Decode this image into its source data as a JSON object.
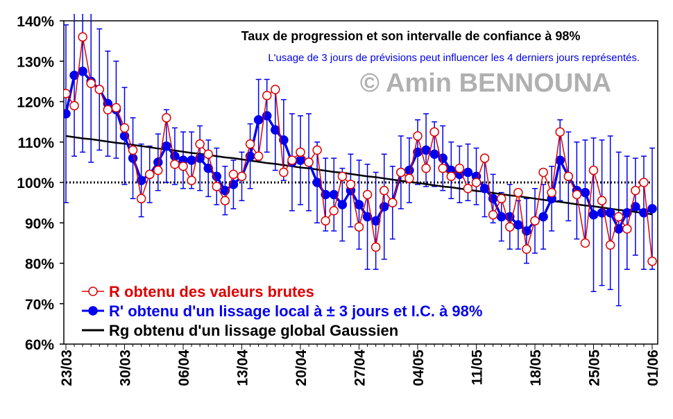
{
  "chart_data": {
    "type": "line",
    "title": "Taux de progression et son intervalle de confiance à 98%",
    "subtitle": "L'usage de 3 jours de prévisions peut influencer les 4 derniers jours représentés.",
    "watermark": "© Amin BENNOUNA",
    "categories": [
      "23/03",
      null,
      null,
      null,
      null,
      null,
      null,
      "30/03",
      null,
      null,
      null,
      null,
      null,
      null,
      "06/04",
      null,
      null,
      null,
      null,
      null,
      null,
      "13/04",
      null,
      null,
      null,
      null,
      null,
      null,
      "20/04",
      null,
      null,
      null,
      null,
      null,
      null,
      "27/04",
      null,
      null,
      null,
      null,
      null,
      null,
      "04/05",
      null,
      null,
      null,
      null,
      null,
      null,
      "11/05",
      null,
      null,
      null,
      null,
      null,
      null,
      "18/05",
      null,
      null,
      null,
      null,
      null,
      null,
      "25/05",
      null,
      null,
      null,
      null,
      null,
      null,
      "01/06"
    ],
    "ylim": [
      60,
      140
    ],
    "yticks": [
      {
        "value": 60,
        "label": "60%"
      },
      {
        "value": 70,
        "label": "70%"
      },
      {
        "value": 80,
        "label": "80%"
      },
      {
        "value": 90,
        "label": "90%"
      },
      {
        "value": 100,
        "label": "100%"
      },
      {
        "value": 110,
        "label": "110%"
      },
      {
        "value": 120,
        "label": "120%"
      },
      {
        "value": 130,
        "label": "130%"
      },
      {
        "value": 140,
        "label": "140%"
      }
    ],
    "reference_line": 100,
    "series": [
      {
        "name": "R obtenu des valeurs brutes",
        "color": "#dd0000",
        "marker": "open",
        "values": [
          122,
          119,
          136,
          124.5,
          123,
          118,
          118.5,
          113.5,
          108,
          96,
          102,
          103,
          116,
          104.5,
          104,
          100.5,
          109.5,
          107,
          99,
          95.5,
          102,
          101.5,
          109.5,
          106.5,
          121.5,
          123,
          102.5,
          105.5,
          107.5,
          105,
          108,
          90.5,
          93,
          101.5,
          99.5,
          89,
          97,
          84,
          98,
          95,
          102.5,
          101,
          111.5,
          103.5,
          112.5,
          103.5,
          101.5,
          103.5,
          98.5,
          100,
          106,
          92,
          96,
          89,
          97.5,
          83.5,
          90.5,
          102.5,
          97.5,
          112.5,
          101.5,
          97,
          85,
          103,
          95.5,
          84.5,
          91.5,
          88.5,
          98,
          100,
          80.5
        ]
      },
      {
        "name": "R' obtenu d'un lissage local à ± 3 jours et I.C. à 98%",
        "color": "#0000ee",
        "marker": "filled",
        "values": [
          117,
          126.5,
          127.5,
          125,
          123,
          119.5,
          118,
          111.5,
          106,
          100.5,
          102,
          105,
          109,
          106.5,
          105.5,
          105.5,
          106,
          103.5,
          101.5,
          98,
          99.5,
          101.5,
          106.5,
          115.5,
          116.5,
          113,
          110.5,
          105,
          105.5,
          105,
          100,
          97,
          97,
          94.5,
          98,
          94.5,
          91.5,
          90.5,
          94,
          95,
          102.5,
          103,
          107.5,
          108,
          107,
          106,
          103,
          102,
          102.5,
          101.5,
          98.5,
          96,
          91.5,
          91.5,
          89.5,
          88,
          90.5,
          91.5,
          96,
          105.5,
          101.5,
          98,
          97.5,
          92,
          92.5,
          92.5,
          88.5,
          92.5,
          94,
          92.5,
          93.5
        ],
        "errors": [
          22,
          20,
          20,
          20,
          15,
          13,
          12,
          12,
          10,
          9,
          7,
          7,
          9,
          7,
          7,
          7,
          8,
          7,
          7,
          6,
          6,
          6,
          8,
          10,
          9,
          10,
          10,
          12,
          11,
          12,
          10,
          9,
          9,
          9,
          9,
          11,
          13,
          12,
          13,
          9,
          9,
          8,
          8,
          9,
          8,
          8,
          7,
          7,
          7,
          7,
          7,
          6,
          6,
          8,
          6,
          8,
          8,
          8,
          8,
          10,
          11,
          12,
          13,
          19,
          18,
          19,
          19,
          14,
          12,
          14,
          15
        ]
      },
      {
        "name": "Rg obtenu d'un lissage global Gaussien",
        "color": "#000000",
        "marker": "none",
        "values": [
          111.5,
          111.2,
          110.9,
          110.7,
          110.4,
          110.1,
          109.8,
          109.6,
          109.3,
          109.0,
          108.7,
          108.4,
          108.2,
          107.9,
          107.6,
          107.3,
          107.1,
          106.8,
          106.5,
          106.2,
          106.0,
          105.7,
          105.4,
          105.1,
          104.8,
          104.6,
          104.3,
          104.0,
          103.7,
          103.5,
          103.2,
          102.9,
          102.6,
          102.4,
          102.1,
          101.8,
          101.5,
          101.3,
          101.0,
          100.7,
          100.4,
          100.1,
          99.9,
          99.6,
          99.3,
          99.0,
          98.8,
          98.5,
          98.2,
          97.9,
          97.7,
          97.4,
          97.1,
          96.8,
          96.6,
          96.3,
          96.0,
          95.7,
          95.4,
          95.2,
          94.9,
          94.6,
          94.3,
          94.1,
          93.8,
          93.5,
          93.2,
          93.0,
          92.7,
          92.4,
          92.1
        ]
      }
    ]
  }
}
